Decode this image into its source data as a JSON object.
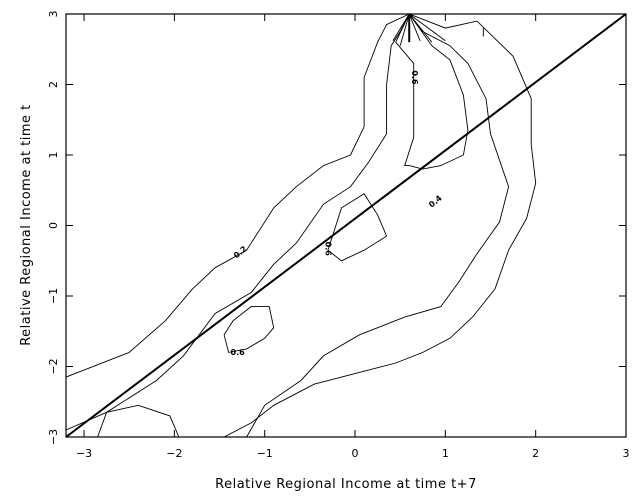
{
  "chart_data": {
    "type": "contour",
    "title": "",
    "xlabel": "Relative Regional Income at time t+7",
    "ylabel": "Relative Regional Income at time t",
    "xlim": [
      -3.2,
      3
    ],
    "ylim": [
      -3,
      3
    ],
    "x_ticks": [
      {
        "value": -3,
        "label": "−3"
      },
      {
        "value": -2,
        "label": "−2"
      },
      {
        "value": -1,
        "label": "−1"
      },
      {
        "value": 0,
        "label": "0"
      },
      {
        "value": 1,
        "label": "1"
      },
      {
        "value": 2,
        "label": "2"
      },
      {
        "value": 3,
        "label": "3"
      }
    ],
    "y_ticks": [
      {
        "value": -3,
        "label": "−3"
      },
      {
        "value": -2,
        "label": "−2"
      },
      {
        "value": -1,
        "label": "−1"
      },
      {
        "value": 0,
        "label": "0"
      },
      {
        "value": 1,
        "label": "1"
      },
      {
        "value": 2,
        "label": "2"
      },
      {
        "value": 3,
        "label": "3"
      }
    ],
    "grid": false,
    "legend": "none",
    "reference_line": {
      "x": [
        -3.2,
        3
      ],
      "y": [
        -3,
        3
      ]
    },
    "contours": [
      {
        "level": 0.2,
        "points": [
          [
            -3.2,
            -2.15
          ],
          [
            -2.5,
            -1.8
          ],
          [
            -2.1,
            -1.35
          ],
          [
            -1.8,
            -0.9
          ],
          [
            -1.55,
            -0.6
          ],
          [
            -1.2,
            -0.35
          ],
          [
            -0.9,
            0.25
          ],
          [
            -0.65,
            0.55
          ],
          [
            -0.35,
            0.85
          ],
          [
            -0.05,
            1.0
          ],
          [
            0.1,
            1.4
          ],
          [
            0.1,
            2.1
          ],
          [
            0.25,
            2.6
          ],
          [
            0.35,
            2.85
          ],
          [
            0.6,
            3.0
          ],
          [
            1.0,
            2.8
          ],
          [
            1.35,
            2.9
          ],
          [
            1.75,
            2.4
          ],
          [
            1.95,
            1.8
          ],
          [
            1.95,
            1.15
          ],
          [
            2.0,
            0.6
          ],
          [
            1.9,
            0.1
          ],
          [
            1.7,
            -0.35
          ],
          [
            1.55,
            -0.9
          ],
          [
            1.3,
            -1.3
          ],
          [
            1.05,
            -1.6
          ],
          [
            0.75,
            -1.8
          ],
          [
            0.45,
            -1.95
          ],
          [
            0.0,
            -2.1
          ],
          [
            -0.45,
            -2.25
          ],
          [
            -0.9,
            -2.55
          ],
          [
            -1.15,
            -2.8
          ],
          [
            -1.45,
            -3.0
          ]
        ]
      },
      {
        "level": 0.4,
        "points": [
          [
            -3.2,
            -2.9
          ],
          [
            -2.75,
            -2.65
          ],
          [
            -2.2,
            -2.2
          ],
          [
            -1.9,
            -1.85
          ],
          [
            -1.55,
            -1.25
          ],
          [
            -1.15,
            -0.95
          ],
          [
            -0.9,
            -0.55
          ],
          [
            -0.65,
            -0.25
          ],
          [
            -0.35,
            0.3
          ],
          [
            -0.05,
            0.55
          ],
          [
            0.15,
            0.9
          ],
          [
            0.35,
            1.3
          ],
          [
            0.35,
            2.0
          ],
          [
            0.4,
            2.55
          ],
          [
            0.5,
            2.75
          ],
          [
            0.6,
            3.0
          ],
          [
            0.75,
            2.75
          ],
          [
            1.05,
            2.55
          ],
          [
            1.25,
            2.3
          ],
          [
            1.45,
            1.8
          ],
          [
            1.5,
            1.3
          ],
          [
            1.7,
            0.55
          ],
          [
            1.6,
            0.05
          ],
          [
            1.35,
            -0.4
          ],
          [
            1.15,
            -0.8
          ],
          [
            0.95,
            -1.15
          ],
          [
            0.55,
            -1.3
          ],
          [
            0.05,
            -1.55
          ],
          [
            -0.35,
            -1.85
          ],
          [
            -0.6,
            -2.2
          ],
          [
            -1.0,
            -2.55
          ],
          [
            -1.2,
            -3.0
          ]
        ]
      },
      {
        "level": 0.6,
        "points": [
          [
            0.45,
            2.6
          ],
          [
            0.6,
            3.0
          ],
          [
            0.85,
            2.55
          ],
          [
            1.05,
            2.35
          ],
          [
            1.2,
            1.85
          ],
          [
            1.25,
            1.35
          ],
          [
            1.2,
            1.0
          ],
          [
            0.95,
            0.85
          ],
          [
            0.75,
            0.8
          ],
          [
            0.6,
            0.85
          ],
          [
            0.55,
            0.85
          ],
          [
            0.65,
            1.25
          ],
          [
            0.65,
            1.75
          ],
          [
            0.65,
            2.3
          ],
          [
            0.45,
            2.6
          ]
        ]
      },
      {
        "level": 0.6,
        "points": [
          [
            -0.25,
            -0.15
          ],
          [
            -0.15,
            0.25
          ],
          [
            0.1,
            0.45
          ],
          [
            0.25,
            0.15
          ],
          [
            0.35,
            -0.15
          ],
          [
            0.1,
            -0.35
          ],
          [
            -0.15,
            -0.5
          ],
          [
            -0.3,
            -0.35
          ],
          [
            -0.25,
            -0.15
          ]
        ]
      },
      {
        "level": 0.6,
        "points": [
          [
            -1.45,
            -1.55
          ],
          [
            -1.4,
            -1.8
          ],
          [
            -1.2,
            -1.75
          ],
          [
            -1.0,
            -1.6
          ],
          [
            -0.9,
            -1.45
          ],
          [
            -0.95,
            -1.15
          ],
          [
            -1.15,
            -1.15
          ],
          [
            -1.35,
            -1.35
          ],
          [
            -1.45,
            -1.55
          ]
        ]
      },
      {
        "level": 0.6,
        "points": [
          [
            -2.85,
            -3.0
          ],
          [
            -2.75,
            -2.65
          ],
          [
            -2.4,
            -2.55
          ],
          [
            -2.05,
            -2.7
          ],
          [
            -1.95,
            -3.0
          ]
        ]
      }
    ],
    "spikes": [
      [
        [
          0.6,
          3.0
        ],
        [
          0.42,
          2.62
        ]
      ],
      [
        [
          0.6,
          3.0
        ],
        [
          0.5,
          2.55
        ]
      ],
      [
        [
          0.6,
          3.0
        ],
        [
          0.6,
          2.6
        ]
      ],
      [
        [
          0.6,
          3.0
        ],
        [
          0.72,
          2.62
        ]
      ],
      [
        [
          0.6,
          3.0
        ],
        [
          0.85,
          2.6
        ]
      ],
      [
        [
          0.6,
          3.0
        ],
        [
          1.0,
          2.62
        ]
      ],
      [
        [
          1.42,
          2.8
        ],
        [
          1.42,
          2.68
        ]
      ]
    ],
    "contour_labels": [
      {
        "text": "0.2",
        "x": -1.27,
        "y": -0.38,
        "rotate": -40
      },
      {
        "text": "0.4",
        "x": 0.89,
        "y": 0.34,
        "rotate": -40
      },
      {
        "text": "0.6",
        "x": 0.66,
        "y": 2.1,
        "rotate": 90
      },
      {
        "text": "0.6",
        "x": -0.3,
        "y": -0.33,
        "rotate": 90
      },
      {
        "text": "0.6",
        "x": -1.3,
        "y": -1.8,
        "rotate": 0
      }
    ]
  }
}
